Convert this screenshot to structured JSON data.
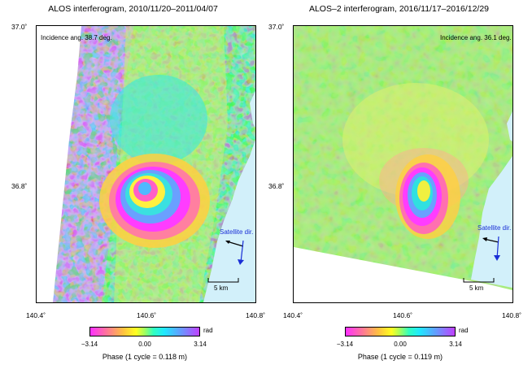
{
  "left_panel": {
    "title": "ALOS interferogram, 2010/11/20–2011/04/07",
    "incidence": "Incidence ang. 38.7 deg.",
    "satellite_dir": "Satellite dir.",
    "scale": "5 km",
    "lat_labels": [
      "37.0˚",
      "36.8˚"
    ],
    "lon_labels": [
      "140.4˚",
      "140.6˚",
      "140.8˚"
    ],
    "colorbar": {
      "min": "−3.14",
      "mid": "0.00",
      "max": "3.14",
      "unit": "rad",
      "caption": "Phase (1 cycle = 0.118 m)"
    }
  },
  "right_panel": {
    "title": "ALOS–2 interferogram, 2016/11/17–2016/12/29",
    "incidence": "Incidence ang. 36.1 deg.",
    "satellite_dir": "Satellite dir.",
    "scale": "5 km",
    "lat_labels": [
      "37.0˚",
      "36.8˚"
    ],
    "lon_labels": [
      "140.4˚",
      "140.6˚",
      "140.8˚"
    ],
    "colorbar": {
      "min": "−3.14",
      "mid": "0.00",
      "max": "3.14",
      "unit": "rad",
      "caption": "Phase (1 cycle = 0.119 m)"
    }
  },
  "colors": {
    "sea": "#d2f0fa",
    "satellite_arrow": "#1a2fd6"
  }
}
